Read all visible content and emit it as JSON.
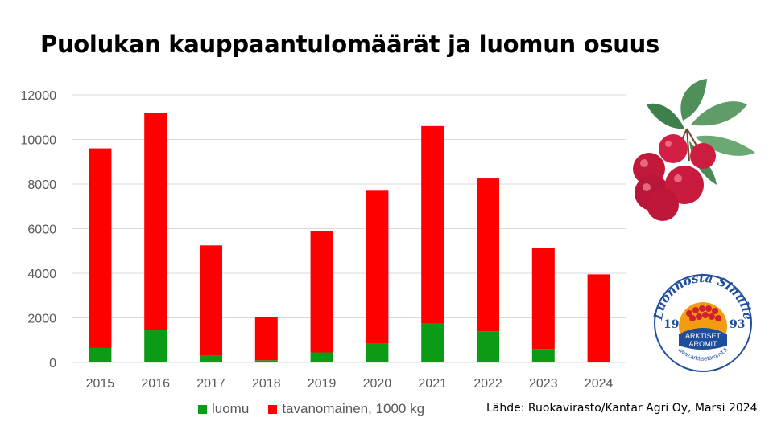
{
  "title": "Puolukan kauppaantulomäärät ja luomun osuus",
  "source": "Lähde: Ruokavirasto/Kantar Agri Oy, Marsi 2024",
  "logo": {
    "arc_text": "Luonnosta Sinulle",
    "year_left": "19",
    "year_right": "93",
    "brand_line1": "ARKTISET",
    "brand_line2": "AROMIT",
    "url": "www.arktisetaromit.fi"
  },
  "colors": {
    "luomu": "#0c9b17",
    "tavanomainen": "#fe0000",
    "grid": "#d9d9d9",
    "logo_blue": "#1f4e9c",
    "logo_orange": "#f39c12"
  },
  "chart_data": {
    "type": "bar",
    "stacked": true,
    "categories": [
      "2015",
      "2016",
      "2017",
      "2018",
      "2019",
      "2020",
      "2021",
      "2022",
      "2023",
      "2024"
    ],
    "series": [
      {
        "name": "luomu",
        "values": [
          650,
          1450,
          300,
          100,
          450,
          850,
          1750,
          1400,
          600,
          0
        ]
      },
      {
        "name": "tavanomainen, 1000 kg",
        "values": [
          8950,
          9750,
          4950,
          1950,
          5450,
          6850,
          8850,
          6850,
          4550,
          3950
        ]
      }
    ],
    "ylim": [
      0,
      12000
    ],
    "yticks": [
      "0",
      "2000",
      "4000",
      "6000",
      "8000",
      "10000",
      "12000"
    ],
    "grid": true,
    "legend_position": "bottom",
    "xlabel": "",
    "ylabel": ""
  }
}
